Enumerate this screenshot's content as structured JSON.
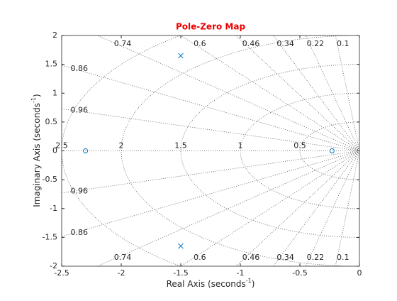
{
  "chart_data": {
    "type": "pzmap",
    "title": "Pole-Zero Map",
    "xlabel": "Real Axis (seconds",
    "xlabel_sup": "-1",
    "xlabel_end": ")",
    "ylabel": "Imaginary Axis (seconds",
    "ylabel_sup": "-1",
    "ylabel_end": ")",
    "xlim": [
      -2.5,
      0
    ],
    "ylim": [
      -2,
      2
    ],
    "xticks": [
      -2.5,
      -2,
      -1.5,
      -1,
      -0.5,
      0
    ],
    "yticks": [
      -2,
      -1.5,
      -1,
      -0.5,
      0,
      0.5,
      1,
      1.5,
      2
    ],
    "damping": [
      0.1,
      0.22,
      0.34,
      0.46,
      0.6,
      0.74,
      0.86,
      0.96
    ],
    "frequencies": [
      0.5,
      1,
      1.5,
      2,
      2.5
    ],
    "series": [
      {
        "marker": "x",
        "color": "#0072bd",
        "x": [
          -1.5,
          -1.5
        ],
        "y": [
          1.65,
          -1.65
        ]
      },
      {
        "marker": "o",
        "color": "#0072bd",
        "x": [
          -2.3,
          -0.23
        ],
        "y": [
          0,
          0
        ]
      }
    ]
  }
}
